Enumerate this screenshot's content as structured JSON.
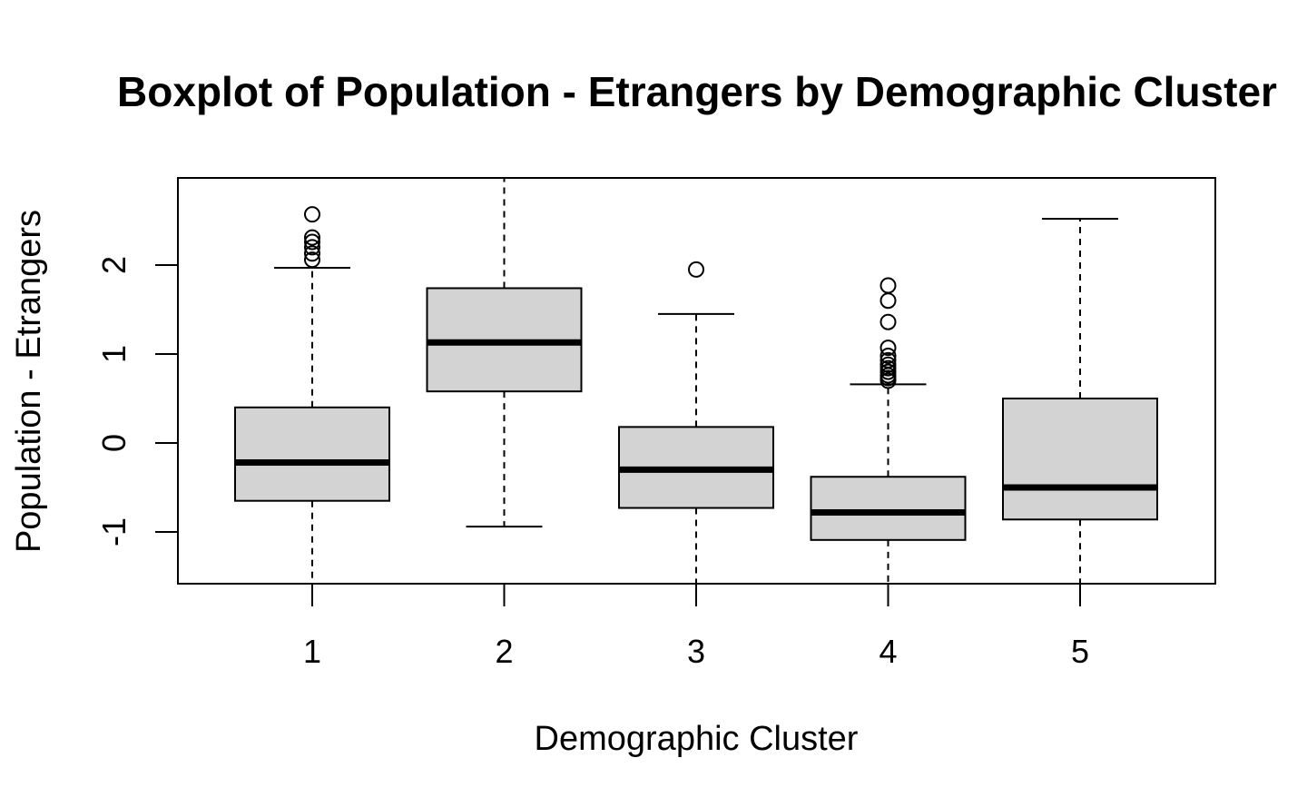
{
  "chart_data": {
    "type": "boxplot",
    "title": "Boxplot of Population - Etrangers by Demographic Cluster",
    "xlabel": "Demographic Cluster",
    "ylabel": "Population - Etrangers",
    "categories": [
      "1",
      "2",
      "3",
      "4",
      "5"
    ],
    "y_ticks": [
      -1,
      0,
      1,
      2
    ],
    "y_tick_labels": [
      "-1",
      "0",
      "1",
      "2"
    ],
    "ylim": [
      -1.58,
      2.98
    ],
    "grid": false,
    "box_fill": "#d3d3d3",
    "line_color": "#000000",
    "boxes": [
      {
        "category": "1",
        "whisker_low": -1.58,
        "q1": -0.65,
        "median": -0.22,
        "q3": 0.4,
        "whisker_high": 1.97,
        "outliers": [
          2.06,
          2.13,
          2.2,
          2.26,
          2.31,
          2.57
        ]
      },
      {
        "category": "2",
        "whisker_low": -0.94,
        "q1": 0.58,
        "median": 1.13,
        "q3": 1.74,
        "whisker_high": 2.98,
        "outliers": []
      },
      {
        "category": "3",
        "whisker_low": -1.58,
        "q1": -0.73,
        "median": -0.3,
        "q3": 0.18,
        "whisker_high": 1.45,
        "outliers": [
          1.95
        ]
      },
      {
        "category": "4",
        "whisker_low": -1.58,
        "q1": -1.09,
        "median": -0.78,
        "q3": -0.38,
        "whisker_high": 0.66,
        "outliers": [
          0.7,
          0.73,
          0.76,
          0.8,
          0.84,
          0.88,
          0.93,
          0.98,
          1.07,
          1.36,
          1.6,
          1.77
        ]
      },
      {
        "category": "5",
        "whisker_low": -1.58,
        "q1": -0.86,
        "median": -0.5,
        "q3": 0.5,
        "whisker_high": 2.52,
        "outliers": []
      }
    ]
  }
}
